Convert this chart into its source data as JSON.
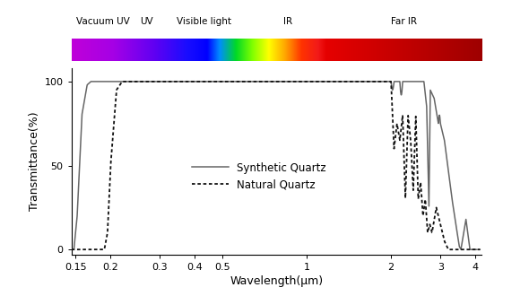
{
  "xlabel": "Wavelength(μm)",
  "ylabel": "Transmittance(%)",
  "xticks": [
    0.15,
    0.2,
    0.3,
    0.4,
    0.5,
    1,
    2,
    3,
    4
  ],
  "xticklabels": [
    "0.15",
    "0.2",
    "0.3",
    "0.4",
    "0.5",
    "1",
    "2",
    "3",
    "4"
  ],
  "yticks": [
    0,
    50,
    100
  ],
  "yticklabels": [
    "0",
    "50",
    "100"
  ],
  "synthetic_color": "#666666",
  "natural_color": "#111111",
  "legend_synthetic": "Synthetic Quartz",
  "legend_natural": "Natural Quartz",
  "spectrum_label_vacuv": "Vacuum UV",
  "spectrum_label_uv": "UV",
  "spectrum_label_vis": "Visible light",
  "spectrum_label_ir": "IR",
  "spectrum_label_farir": "Far IR",
  "spectrum_colors": [
    [
      0.0,
      [
        0.75,
        0.0,
        0.85
      ]
    ],
    [
      0.1,
      [
        0.65,
        0.0,
        0.9
      ]
    ],
    [
      0.2,
      [
        0.38,
        0.0,
        0.95
      ]
    ],
    [
      0.28,
      [
        0.1,
        0.05,
        1.0
      ]
    ],
    [
      0.33,
      [
        0.0,
        0.0,
        1.0
      ]
    ],
    [
      0.36,
      [
        0.0,
        0.55,
        1.0
      ]
    ],
    [
      0.4,
      [
        0.0,
        0.85,
        0.15
      ]
    ],
    [
      0.44,
      [
        0.5,
        1.0,
        0.0
      ]
    ],
    [
      0.48,
      [
        1.0,
        1.0,
        0.0
      ]
    ],
    [
      0.52,
      [
        1.0,
        0.65,
        0.0
      ]
    ],
    [
      0.56,
      [
        1.0,
        0.2,
        0.0
      ]
    ],
    [
      0.6,
      [
        0.95,
        0.1,
        0.1
      ]
    ],
    [
      0.62,
      [
        0.9,
        0.0,
        0.0
      ]
    ],
    [
      1.0,
      [
        0.62,
        0.0,
        0.0
      ]
    ]
  ],
  "spectrum_boundary_vacuv_uv": 0.155,
  "spectrum_boundary_uv_vis": 0.21,
  "spectrum_boundary_vis_ir": 0.435,
  "spectrum_boundary_ir_farir": 0.62
}
